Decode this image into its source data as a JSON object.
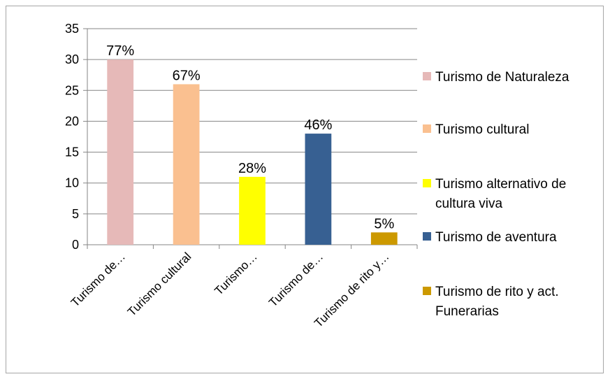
{
  "chart_data": {
    "type": "bar",
    "categories": [
      "Turismo de…",
      "Turismo cultural",
      "Turismo…",
      "Turismo de…",
      "Turismo de rito y…"
    ],
    "values": [
      30,
      26,
      11,
      18,
      2
    ],
    "data_labels": [
      "77%",
      "67%",
      "28%",
      "46%",
      "5%"
    ],
    "colors": [
      "#e6b9b8",
      "#fac090",
      "#ffff00",
      "#376092",
      "#cc9900"
    ],
    "legend": [
      {
        "lines": [
          "Turismo de Naturaleza"
        ],
        "color": "#e6b9b8"
      },
      {
        "lines": [
          "Turismo cultural"
        ],
        "color": "#fac090"
      },
      {
        "lines": [
          "Turismo alternativo de",
          "cultura viva"
        ],
        "color": "#ffff00"
      },
      {
        "lines": [
          "Turismo de aventura"
        ],
        "color": "#376092"
      },
      {
        "lines": [
          "Turismo de rito y act.",
          "Funerarias"
        ],
        "color": "#cc9900"
      }
    ],
    "legend_position": "right",
    "ylim": [
      0,
      35
    ],
    "yticks": [
      0,
      5,
      10,
      15,
      20,
      25,
      30,
      35
    ],
    "grid": true,
    "title": "",
    "xlabel": "",
    "ylabel": ""
  }
}
